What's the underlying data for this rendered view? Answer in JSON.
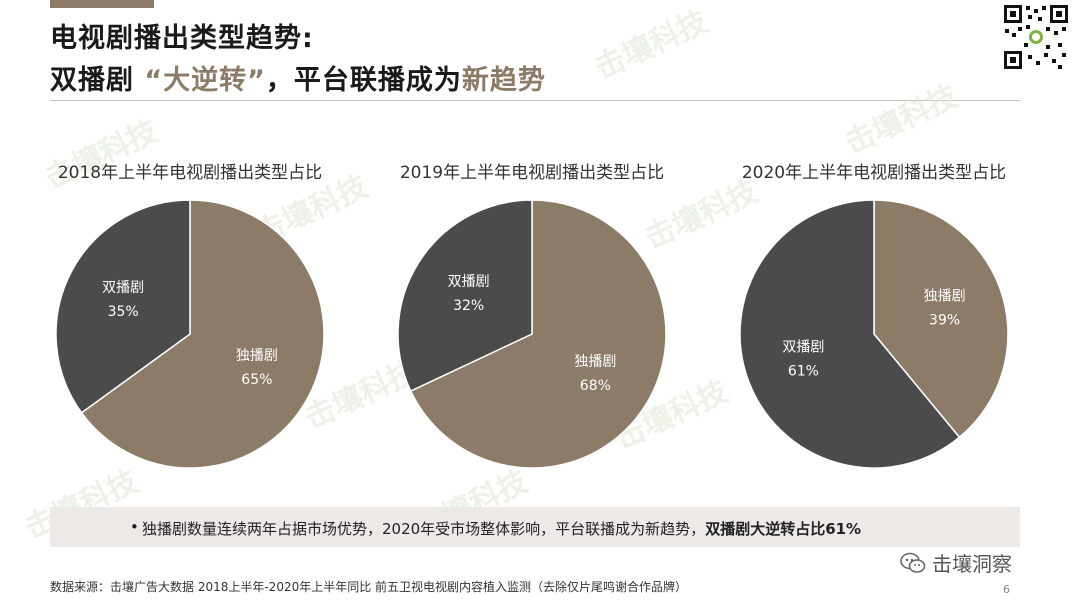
{
  "header": {
    "line1": "电视剧播出类型趋势:",
    "line2_part1": "双播剧 ",
    "line2_quote": "“大逆转”",
    "line2_part2": "，平台联播成为",
    "line2_highlight": "新趋势"
  },
  "colors": {
    "dual": "#4a4b4b",
    "exclusive": "#8c7b67",
    "accent": "#8c7b67"
  },
  "chart_data": [
    {
      "type": "pie",
      "title": "2018年上半年电视剧播出类型占比",
      "slices": [
        {
          "label": "独播剧",
          "value": 65,
          "pct": "65%"
        },
        {
          "label": "双播剧",
          "value": 35,
          "pct": "35%"
        }
      ]
    },
    {
      "type": "pie",
      "title": "2019年上半年电视剧播出类型占比",
      "slices": [
        {
          "label": "独播剧",
          "value": 68,
          "pct": "68%"
        },
        {
          "label": "双播剧",
          "value": 32,
          "pct": "32%"
        }
      ]
    },
    {
      "type": "pie",
      "title": "2020年上半年电视剧播出类型占比",
      "slices": [
        {
          "label": "独播剧",
          "value": 39,
          "pct": "39%"
        },
        {
          "label": "双播剧",
          "value": 61,
          "pct": "61%"
        }
      ]
    }
  ],
  "note": {
    "bullet": "•",
    "text": "独播剧数量连续两年占据市场优势，2020年受市场整体影响，平台联播成为新趋势，",
    "bold": "双播剧大逆转占比61%"
  },
  "footer": "数据来源：击壤广告大数据  2018上半年-2020年上半年同比 前五卫视电视剧内容植入监测（去除仅片尾鸣谢合作品牌）",
  "wechat": {
    "icon": "wechat-icon",
    "name": "击壤洞察"
  },
  "page_number": "6",
  "watermark": "击壤科技"
}
